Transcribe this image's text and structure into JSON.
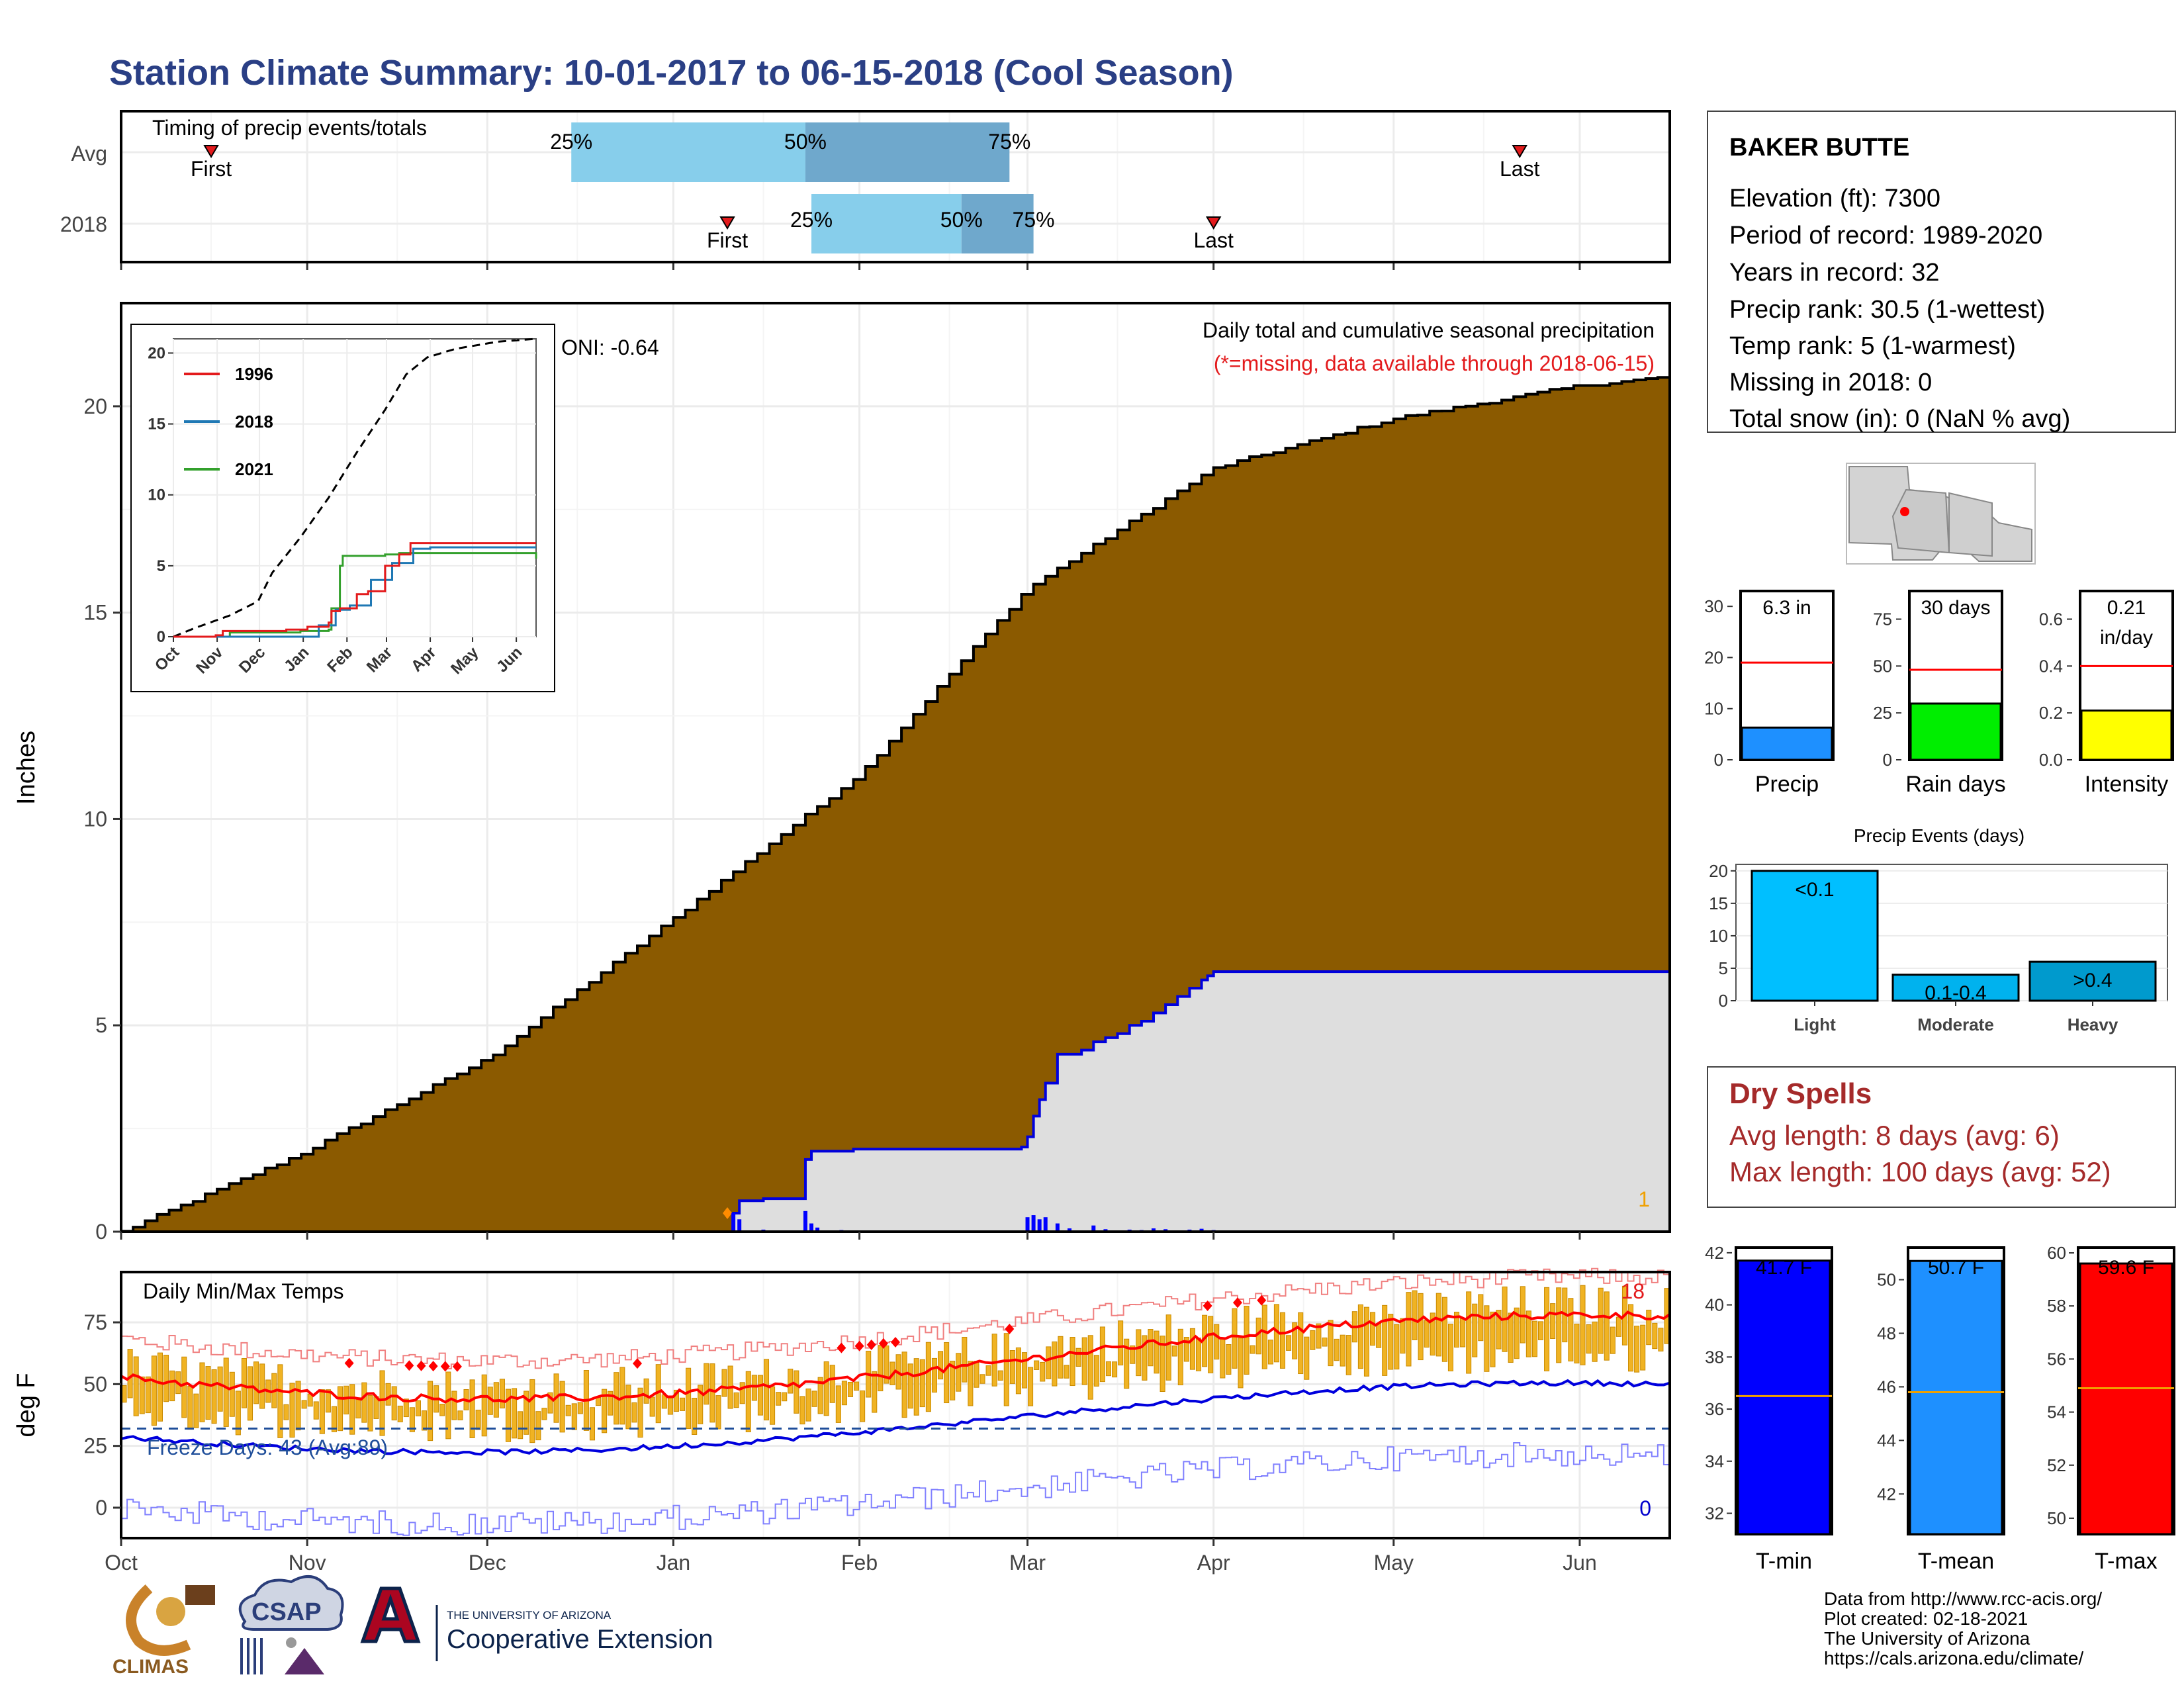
{
  "title": "Station Climate Summary: 10-01-2017 to 06-15-2018 (Cool Season)",
  "station": {
    "name": "BAKER BUTTE",
    "lines": [
      "Elevation (ft): 7300",
      "Period of record: 1989-2020",
      "Years in record: 32",
      "Precip rank: 30.5 (1-wettest)",
      "Temp rank: 5 (1-warmest)",
      "Missing in 2018: 0",
      "Total snow (in): 0 (NaN % avg)"
    ]
  },
  "months": [
    "Oct",
    "Nov",
    "Dec",
    "Jan",
    "Feb",
    "Mar",
    "Apr",
    "May",
    "Jun"
  ],
  "timing": {
    "label": "Timing of precip events/totals",
    "rows": [
      "Avg",
      "2018"
    ],
    "first_label": "First",
    "last_label": "Last",
    "q_labels": [
      "25%",
      "50%",
      "75%"
    ],
    "avg": {
      "first_day": 15,
      "q25": 75,
      "q50": 114,
      "q75": 148,
      "last_day": 233
    },
    "y2018": {
      "first_day": 101,
      "q25": 115,
      "q50": 140,
      "q75": 152,
      "last_day": 182
    }
  },
  "precip": {
    "ylabel": "Inches",
    "title": "Daily total and cumulative seasonal precipitation",
    "note": "(*=missing, data available through 2018-06-15)",
    "oni": "ONI: -0.64",
    "corner_count": "1",
    "yticks": [
      0,
      5,
      10,
      15,
      20
    ],
    "ymax": 22.5
  },
  "inset": {
    "legend": [
      "1996",
      "2018",
      "2021"
    ],
    "yticks": [
      0,
      5,
      10,
      15,
      20
    ],
    "months": [
      "Oct",
      "Nov",
      "Dec",
      "Jan",
      "Feb",
      "Mar",
      "Apr",
      "May",
      "Jun"
    ]
  },
  "temps": {
    "ylabel": "deg F",
    "title": "Daily Min/Max Temps",
    "freeze": "Freeze Days: 43 (Avg:89)",
    "max_count": "18",
    "min_count": "0",
    "yticks": [
      0,
      25,
      50,
      75
    ],
    "freeze_line": 32
  },
  "bars_precip": {
    "labels": [
      "Precip",
      "Rain days",
      "Intensity"
    ],
    "values": [
      "6.3 in",
      "30 days",
      "0.21"
    ],
    "intensity_unit": "in/day",
    "panels": [
      {
        "val": 6.3,
        "avg": 19,
        "max": 33,
        "ticks": [
          0,
          10,
          20,
          30
        ]
      },
      {
        "val": 30,
        "avg": 48,
        "max": 90,
        "ticks": [
          0,
          25,
          50,
          75
        ]
      },
      {
        "val": 0.21,
        "avg": 0.4,
        "max": 0.72,
        "ticks": [
          "0.0",
          "0.2",
          "0.4",
          "0.6"
        ]
      }
    ]
  },
  "events": {
    "title": "Precip Events (days)",
    "categories": [
      "Light",
      "Moderate",
      "Heavy"
    ],
    "labels": [
      "<0.1",
      "0.1-0.4",
      ">0.4"
    ],
    "values": [
      20,
      4,
      6
    ],
    "ticks": [
      0,
      5,
      10,
      15,
      20
    ]
  },
  "dry": {
    "title": "Dry Spells",
    "avg": "Avg length: 8 days (avg: 6)",
    "max": "Max length: 100 days (avg: 52)"
  },
  "tbars": {
    "labels": [
      "T-min",
      "T-mean",
      "T-max"
    ],
    "values": [
      "41.7 F",
      "50.7 F",
      "59.6 F"
    ],
    "panels": [
      {
        "val": 41.7,
        "avg": 36.5,
        "min": 31.2,
        "max": 42.2,
        "ticks": [
          32,
          34,
          36,
          38,
          40,
          42
        ]
      },
      {
        "val": 50.7,
        "avg": 45.8,
        "min": 40.5,
        "max": 51.2,
        "ticks": [
          42,
          44,
          46,
          48,
          50
        ]
      },
      {
        "val": 59.6,
        "avg": 54.9,
        "min": 49.4,
        "max": 60.2,
        "ticks": [
          50,
          52,
          54,
          56,
          58,
          60
        ]
      }
    ]
  },
  "credits": [
    "Data from http://www.rcc-acis.org/",
    "Plot created: 02-18-2021",
    "The University of Arizona",
    "https://cals.arizona.edu/climate/"
  ],
  "logos": {
    "climas": "CLIMAS",
    "csap": "CSAP",
    "ua_small": "THE UNIVERSITY OF ARIZONA",
    "ua_big": "Cooperative Extension"
  },
  "chart_data": {
    "type": "area",
    "title": "Daily total and cumulative seasonal precipitation",
    "ylabel": "Inches",
    "ylim": [
      0,
      22.5
    ],
    "x_categories": [
      "Oct",
      "Nov",
      "Dec",
      "Jan",
      "Feb",
      "Mar",
      "Apr",
      "May",
      "Jun"
    ],
    "series": [
      {
        "name": "Avg",
        "x_days": [
          0,
          30,
          61,
          92,
          123,
          151,
          182,
          212,
          243,
          257
        ],
        "values": [
          0,
          1.9,
          4.2,
          7.6,
          11.1,
          15.6,
          18.5,
          19.7,
          20.5,
          20.7
        ]
      },
      {
        "name": "2018",
        "x_days": [
          0,
          101,
          107,
          115,
          175,
          176,
          257
        ],
        "values": [
          0,
          0.8,
          0.8,
          1.9,
          6.2,
          6.3,
          6.3
        ]
      }
    ]
  }
}
